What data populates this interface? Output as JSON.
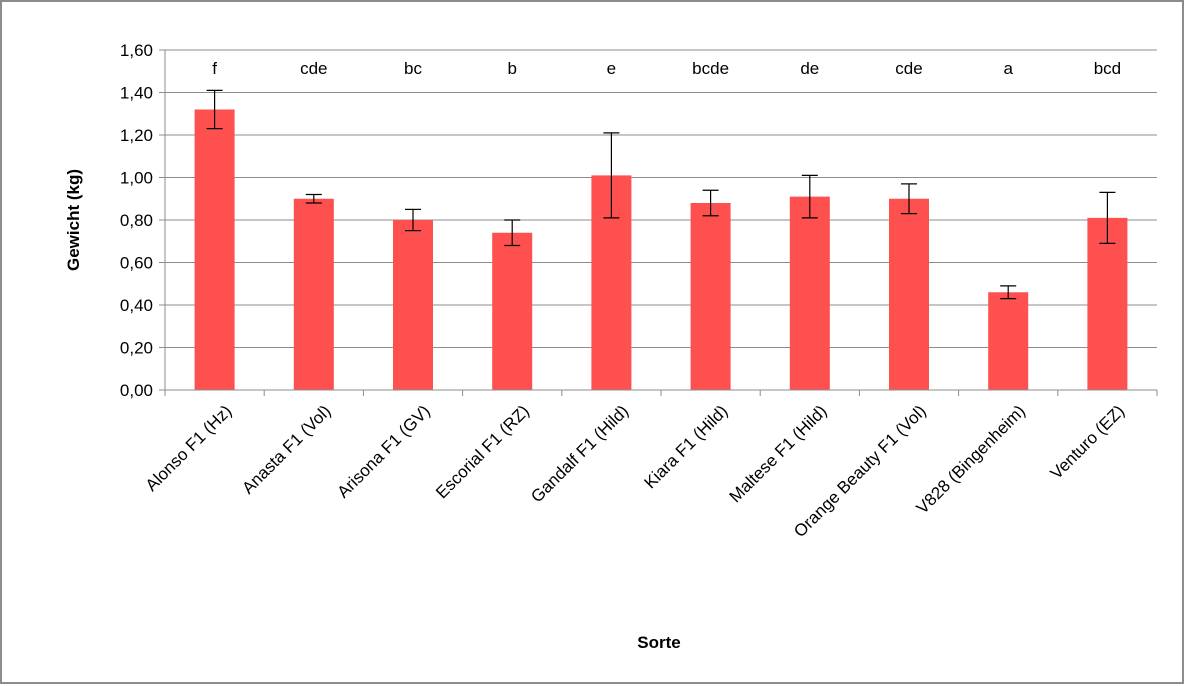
{
  "chart_data": {
    "type": "bar",
    "title": "",
    "xlabel": "Sorte",
    "ylabel": "Gewicht (kg)",
    "ylim": [
      0,
      1.6
    ],
    "y_ticks": [
      "0,00",
      "0,20",
      "0,40",
      "0,60",
      "0,80",
      "1,00",
      "1,20",
      "1,40",
      "1,60"
    ],
    "grid": true,
    "legend": "none",
    "bar_color": "#ff5050",
    "categories": [
      "Alonso F1 (Hz)",
      "Anasta F1 (Vol)",
      "Arisona F1 (GV)",
      "Escorial F1 (RZ)",
      "Gandalf F1 (Hild)",
      "Kiara F1 (Hild)",
      "Maltese F1 (Hild)",
      "Orange Beauty F1 (Vol)",
      "V828 (Bingenheim)",
      "Venturo (EZ)"
    ],
    "values": [
      1.32,
      0.9,
      0.8,
      0.74,
      1.01,
      0.88,
      0.91,
      0.9,
      0.46,
      0.81
    ],
    "error": [
      0.09,
      0.02,
      0.05,
      0.06,
      0.2,
      0.06,
      0.1,
      0.07,
      0.03,
      0.12
    ],
    "annotations": [
      "f",
      "cde",
      "bc",
      "b",
      "e",
      "bcde",
      "de",
      "cde",
      "a",
      "bcd"
    ]
  }
}
